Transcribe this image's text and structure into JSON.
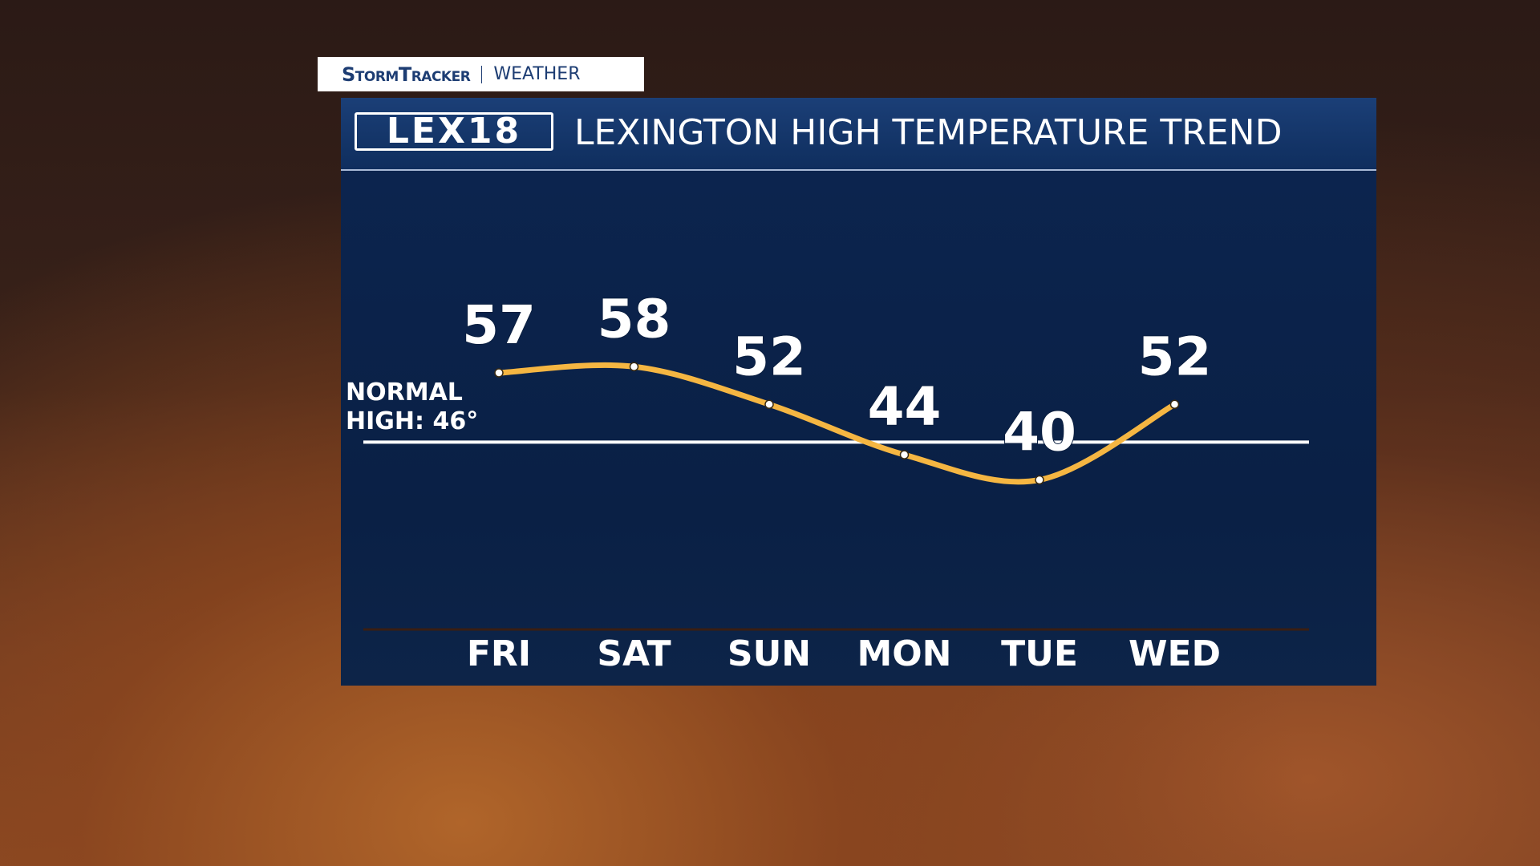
{
  "tab": {
    "brand": "StormTracker",
    "section": "WEATHER"
  },
  "logo": "LEX18",
  "chart_data": {
    "type": "line",
    "title": "LEXINGTON HIGH TEMPERATURE TREND",
    "categories": [
      "FRI",
      "SAT",
      "SUN",
      "MON",
      "TUE",
      "WED"
    ],
    "values": [
      57,
      58,
      52,
      44,
      40,
      52
    ],
    "color": "#f5b642",
    "ylim": [
      20,
      80
    ],
    "reference_line": {
      "value": 46,
      "label": "NORMAL HIGH: 46°"
    }
  }
}
